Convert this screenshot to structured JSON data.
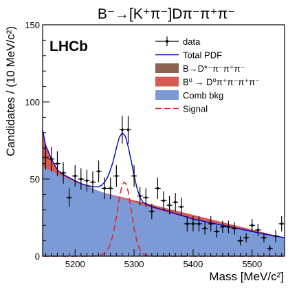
{
  "chart_data": {
    "type": "line",
    "title": "B⁻→[K⁺π⁻]Dπ⁻π⁺π⁻",
    "experiment_label": "LHCb",
    "xlabel": "Mass [MeV/c²]",
    "ylabel": "Candidates / (10 MeV/c²)",
    "xlim": [
      5145,
      5555
    ],
    "ylim": [
      0,
      150
    ],
    "x_ticks": [
      5200,
      5300,
      5400,
      5500
    ],
    "y_ticks": [
      0,
      50,
      100,
      150
    ],
    "legend_position": "top-right",
    "legend": [
      {
        "label": "data",
        "style": "point",
        "color": "#000000"
      },
      {
        "label": "Total PDF",
        "style": "line",
        "color": "#0000cc"
      },
      {
        "label": "B→D*⁻π⁻π⁺π⁻",
        "style": "box",
        "color": "#8b6352"
      },
      {
        "label": "B⁰ → D⁰π⁺π⁻π⁺π⁻",
        "style": "box",
        "color": "#d65a52"
      },
      {
        "label": "Comb bkg",
        "style": "box",
        "color": "#7b9ad6"
      },
      {
        "label": "Signal",
        "style": "dash",
        "color": "#e8202a"
      }
    ],
    "data": {
      "x": [
        5150,
        5160,
        5170,
        5180,
        5190,
        5200,
        5210,
        5220,
        5230,
        5240,
        5250,
        5260,
        5270,
        5280,
        5290,
        5300,
        5310,
        5320,
        5330,
        5340,
        5350,
        5360,
        5370,
        5380,
        5390,
        5400,
        5410,
        5420,
        5430,
        5440,
        5450,
        5460,
        5470,
        5480,
        5490,
        5500,
        5510,
        5520,
        5530,
        5540,
        5550
      ],
      "y": [
        64,
        63,
        60,
        54,
        38,
        52,
        50,
        49,
        48,
        55,
        44,
        44,
        52,
        82,
        82,
        52,
        39,
        38,
        29,
        44,
        36,
        33,
        35,
        32,
        21,
        21,
        21,
        18,
        21,
        16,
        19,
        19,
        18,
        10,
        12,
        20,
        17,
        12,
        5,
        13,
        21
      ],
      "yerr": [
        8,
        8,
        8,
        7,
        6,
        7,
        7,
        7,
        7,
        7,
        7,
        7,
        7,
        9,
        9,
        7,
        6,
        6,
        5,
        7,
        6,
        6,
        6,
        6,
        5,
        5,
        5,
        4,
        5,
        4,
        4,
        4,
        4,
        3,
        3,
        4,
        4,
        3,
        2,
        4,
        5
      ]
    },
    "series": [
      {
        "name": "Comb bkg",
        "x": [
          5145,
          5200,
          5250,
          5300,
          5350,
          5400,
          5450,
          5500,
          5555
        ],
        "y": [
          58,
          48,
          41,
          35,
          29,
          24,
          20,
          16,
          12
        ]
      },
      {
        "name": "B⁰ → D⁰π⁺π⁻π⁺π⁻",
        "x": [
          5145,
          5150,
          5160,
          5170,
          5180,
          5190,
          5200,
          5210,
          5220,
          5230,
          5240
        ],
        "y": [
          82,
          72,
          62,
          56,
          53,
          51,
          49,
          47,
          46,
          44,
          42
        ]
      },
      {
        "name": "Total PDF",
        "x": [
          5145,
          5150,
          5160,
          5170,
          5180,
          5190,
          5200,
          5210,
          5220,
          5230,
          5240,
          5245,
          5250,
          5255,
          5260,
          5265,
          5270,
          5275,
          5280,
          5285,
          5290,
          5295,
          5300,
          5305,
          5310,
          5315,
          5320,
          5330,
          5340,
          5350,
          5375,
          5400,
          5425,
          5450,
          5475,
          5500,
          5525,
          5555
        ],
        "y": [
          82,
          72,
          63,
          56,
          53,
          51,
          49,
          47,
          46,
          45,
          45,
          46,
          48,
          51,
          56,
          62,
          70,
          77,
          80,
          78,
          71,
          62,
          52,
          44,
          38,
          35,
          34,
          32,
          31,
          30,
          27,
          24,
          22,
          20,
          18,
          16,
          14,
          12
        ]
      },
      {
        "name": "Signal",
        "x": [
          5145,
          5230,
          5240,
          5245,
          5250,
          5255,
          5260,
          5265,
          5270,
          5275,
          5280,
          5283,
          5286,
          5290,
          5295,
          5300,
          5305,
          5310,
          5315,
          5320,
          5330,
          5340,
          5555
        ],
        "y": [
          0,
          0,
          0.3,
          0.8,
          2,
          4,
          8,
          15,
          25,
          38,
          46,
          48,
          47,
          42,
          30,
          18,
          9,
          4,
          1.5,
          0.5,
          0.1,
          0,
          0
        ]
      }
    ]
  }
}
